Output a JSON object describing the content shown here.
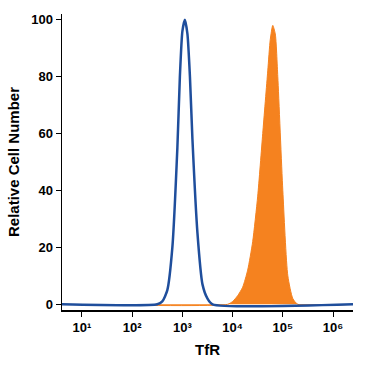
{
  "chart_data": {
    "type": "histogram",
    "x_label": "TfR",
    "y_label": "Relative Cell Number",
    "log": "x",
    "grid": false,
    "xlim": [
      4,
      2500000
    ],
    "xticks": [
      {
        "value": 10,
        "label": "10¹"
      },
      {
        "value": 100,
        "label": "10²"
      },
      {
        "value": 1000,
        "label": "10³"
      },
      {
        "value": 10000,
        "label": "10⁴"
      },
      {
        "value": 100000,
        "label": "10⁵"
      },
      {
        "value": 1000000,
        "label": "10⁶"
      }
    ],
    "ylim": [
      -2,
      102
    ],
    "yticks": [
      0,
      20,
      40,
      60,
      80,
      100
    ],
    "series": [
      {
        "type": "area",
        "color": "#f5821f",
        "x": [
          4,
          7943,
          10000,
          12589,
          15849,
          19953,
          25119,
          31623,
          39811,
          50119,
          56234,
          63096,
          70795,
          79433,
          100000,
          125893,
          158489,
          199526,
          2500000
        ],
        "values": [
          0,
          0,
          1,
          3,
          6,
          12,
          22,
          38,
          60,
          82,
          93,
          98,
          95,
          80,
          40,
          10,
          2,
          0,
          0
        ]
      },
      {
        "type": "line",
        "color": "#1f4e9c",
        "x": [
          4,
          316,
          398,
          501,
          631,
          794,
          891,
          1000,
          1122,
          1259,
          1413,
          1585,
          1995,
          2512,
          3162,
          3981,
          2500000
        ],
        "values": [
          0,
          0,
          1,
          5,
          20,
          55,
          80,
          96,
          100,
          95,
          80,
          58,
          25,
          7,
          2,
          0,
          0
        ]
      }
    ]
  }
}
